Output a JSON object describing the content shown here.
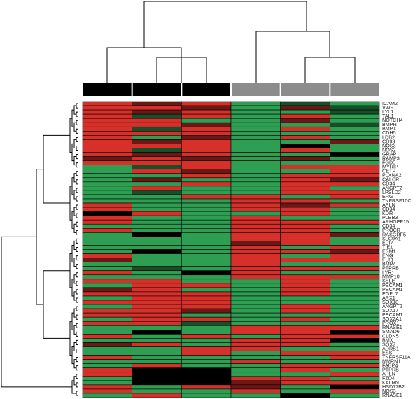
{
  "chart_data": {
    "type": "heatmap",
    "rows": [
      "ICAM2",
      "VWF",
      "LYL1",
      "TAL1",
      "NOTCH4",
      "BMPR",
      "BMPX",
      "CDH5",
      "LDB2",
      "CD93",
      "NOS3",
      "NOS2",
      "GRAP",
      "RAMP3",
      "FGD5",
      "MYRIP",
      "CETP",
      "PLXNA2",
      "CALCRL",
      "CD34",
      "ANGPT2",
      "LPSLD2",
      "ERG",
      "TNFRSF10C",
      "APLN",
      "CD34",
      "KDR",
      "PLBB3",
      "ARHGEF15",
      "CD34",
      "PROCR",
      "RASGRF5",
      "SLC9A1",
      "ELT4",
      "TIE1",
      "ESM1",
      "ENG",
      "FLT1",
      "BMP4",
      "PTPRB",
      "LYR1",
      "MMP10",
      "SELE",
      "PECAM1",
      "PECAM1",
      "EGFL7",
      "ARX1",
      "SOX18",
      "ANGPT2",
      "SOX17",
      "PECAM1",
      "SOX2A1",
      "PROX1",
      "RNASE1",
      "SMAD6",
      "CLDN5",
      "BMX",
      "SOX7",
      "ADRB1",
      "ESS",
      "TNFRSF11A",
      "MMRN1",
      "FABP4",
      "PTPRB",
      "APLN",
      "FZD4",
      "KALRN",
      "HSD17B2",
      "NOS3",
      "RNASE1"
    ],
    "column_colors": [
      "#000000",
      "#000000",
      "#000000",
      "#8c8c8c",
      "#8c8c8c",
      "#8c8c8c"
    ],
    "colors": {
      "high": "#d7302a",
      "mid": "#000000",
      "low": "#2e9e52"
    },
    "values": [
      [
        1,
        0.5,
        1,
        -1,
        -0.5,
        -1
      ],
      [
        1,
        1,
        0.5,
        -1,
        0.5,
        -0.5
      ],
      [
        1,
        0.5,
        1,
        -1,
        -1,
        -0.5
      ],
      [
        1,
        -0.5,
        1,
        -1,
        1,
        -1
      ],
      [
        1,
        1,
        -1,
        -1,
        0.5,
        -1
      ],
      [
        1,
        1,
        0.5,
        -1,
        -1,
        -0.5
      ],
      [
        1,
        -0.5,
        1,
        -1,
        1,
        -1
      ],
      [
        1,
        1,
        1,
        -1,
        -1,
        -1
      ],
      [
        1,
        -1,
        0.5,
        -1,
        1,
        -1
      ],
      [
        1,
        0.5,
        1,
        -1,
        -1,
        0.5
      ],
      [
        1,
        1,
        1,
        -1,
        0,
        -1
      ],
      [
        1,
        -0.5,
        1,
        -1,
        1,
        -1
      ],
      [
        1,
        0.5,
        1,
        -1,
        -1,
        0
      ],
      [
        0.5,
        1,
        0.5,
        -1,
        0.5,
        -1
      ],
      [
        1,
        1,
        1,
        -1,
        -1,
        -1
      ],
      [
        -1,
        -0.5,
        1,
        -1,
        1,
        1
      ],
      [
        -1,
        1,
        0.5,
        -1,
        -1,
        1
      ],
      [
        -1,
        -1,
        1,
        -1,
        1,
        1
      ],
      [
        -1,
        0.5,
        -1,
        -1,
        1,
        0.5
      ],
      [
        -1,
        -1,
        1,
        -1,
        1,
        1
      ],
      [
        -1,
        1,
        -1,
        -1,
        1,
        -1
      ],
      [
        -1,
        -0.5,
        -1,
        -1,
        1,
        1
      ],
      [
        -1,
        -1,
        1,
        1,
        -1,
        1
      ],
      [
        -1,
        -1,
        -1,
        1,
        1,
        -1
      ],
      [
        1,
        -1,
        -1,
        1,
        0.5,
        1
      ],
      [
        1,
        -1,
        -1,
        1,
        1,
        -1
      ],
      [
        0,
        1,
        -1,
        -1,
        1,
        -1
      ],
      [
        1,
        -1,
        -1,
        1,
        -1,
        -1
      ],
      [
        1,
        -1,
        -1,
        1,
        1,
        1
      ],
      [
        -1,
        -1,
        -1,
        1,
        1,
        -1
      ],
      [
        1,
        -1,
        -1,
        1,
        1,
        -1
      ],
      [
        -1,
        0,
        -1,
        1,
        1,
        0.5
      ],
      [
        -1,
        -1,
        -1,
        1,
        1,
        -1
      ],
      [
        -1,
        -1,
        -1,
        0.5,
        1,
        -1
      ],
      [
        -1,
        -1,
        -1,
        1,
        -1,
        1
      ],
      [
        -1,
        0,
        -1,
        1,
        1,
        0.5
      ],
      [
        1,
        -1,
        -1,
        1,
        -1,
        1
      ],
      [
        0.5,
        -1,
        -1,
        1,
        1,
        1
      ],
      [
        -1,
        -1,
        -1,
        1,
        -1,
        -1
      ],
      [
        -1,
        -0.5,
        -1,
        1,
        1,
        1
      ],
      [
        1,
        -1,
        0,
        1,
        -1,
        -1
      ],
      [
        -1,
        -1,
        -1,
        1,
        1,
        1
      ],
      [
        1,
        1,
        -1,
        -1,
        1,
        -1
      ],
      [
        -1,
        1,
        1,
        -1,
        1,
        -1
      ],
      [
        0.5,
        1,
        -1,
        -1,
        1,
        -1
      ],
      [
        1,
        1,
        1,
        -1,
        1,
        -1
      ],
      [
        -1,
        1,
        1,
        -1,
        -1,
        -1
      ],
      [
        1,
        1,
        1,
        -1,
        -1,
        -1
      ],
      [
        -1,
        1,
        1,
        -1,
        1,
        -1
      ],
      [
        1,
        1,
        0.5,
        -1,
        1,
        -1
      ],
      [
        1,
        1,
        -1,
        -1,
        -1,
        -1
      ],
      [
        -1,
        1,
        1,
        -1,
        1,
        -1
      ],
      [
        1,
        1,
        -0.5,
        -1,
        -1,
        -1
      ],
      [
        -1,
        -1,
        -1,
        1,
        1,
        1
      ],
      [
        -1,
        0,
        -1,
        1,
        1,
        0
      ],
      [
        1,
        -1,
        1,
        -1,
        1,
        1
      ],
      [
        -1,
        -1,
        -1,
        1,
        1,
        0
      ],
      [
        0.5,
        1,
        -1,
        1,
        1,
        -1
      ],
      [
        -1,
        -1,
        1,
        1,
        -1,
        -1
      ],
      [
        -1,
        -1,
        1,
        -1,
        1,
        1
      ],
      [
        1,
        -1,
        -1,
        -1,
        -1,
        1
      ],
      [
        -1,
        -1,
        -1,
        1,
        -1,
        -1
      ],
      [
        -1,
        1,
        -1,
        -1,
        1,
        1
      ],
      [
        1,
        0,
        0,
        -1,
        1,
        -1
      ],
      [
        1,
        0,
        0,
        -1,
        -1,
        1
      ],
      [
        -1,
        0,
        0,
        1,
        1,
        -1
      ],
      [
        -1,
        0,
        0,
        0.5,
        1,
        1
      ],
      [
        1,
        -1,
        1,
        0.5,
        -1,
        0
      ],
      [
        1,
        -1,
        -1,
        1,
        -1,
        1
      ],
      [
        -1,
        1,
        -1,
        -1,
        0,
        -1
      ]
    ]
  }
}
